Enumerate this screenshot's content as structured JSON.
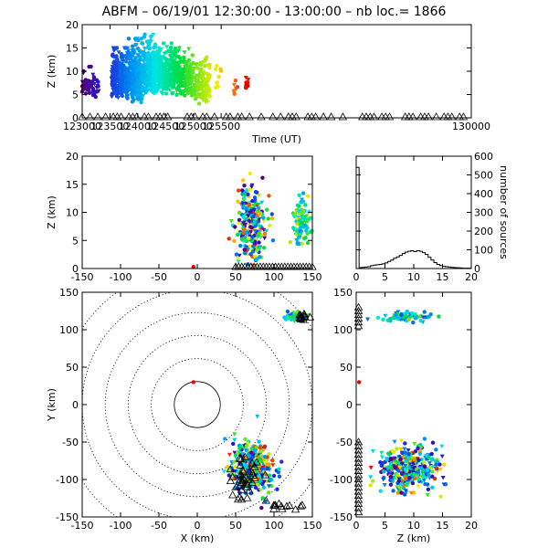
{
  "title": {
    "station": "ABFM",
    "date": "06/19/01",
    "time_range": "12:30:00 - 13:00:00",
    "label": "nb loc.=",
    "count": "1866"
  },
  "chart_data": [
    {
      "id": "time-height",
      "type": "scatter",
      "xlabel": "Time (UT)",
      "ylabel": "Z (km)",
      "xlim": [
        123000,
        130000
      ],
      "ylim": [
        0,
        20
      ],
      "xticks": [
        123000,
        123500,
        124000,
        124500,
        125000,
        125500,
        130000
      ],
      "yticks": [
        0,
        5,
        10,
        15,
        20
      ],
      "color_by": "time",
      "clusters": [
        {
          "t": [
            123000,
            123120
          ],
          "z": [
            5,
            10
          ],
          "n": 30
        },
        {
          "t": [
            123120,
            123300
          ],
          "z": [
            4,
            11
          ],
          "n": 30
        },
        {
          "t": [
            123530,
            123800
          ],
          "z": [
            4,
            15
          ],
          "n": 260
        },
        {
          "t": [
            123800,
            124100
          ],
          "z": [
            3,
            17
          ],
          "n": 320
        },
        {
          "t": [
            124100,
            124400
          ],
          "z": [
            5,
            18
          ],
          "n": 260
        },
        {
          "t": [
            124400,
            124700
          ],
          "z": [
            5,
            16
          ],
          "n": 200
        },
        {
          "t": [
            124700,
            125000
          ],
          "z": [
            4,
            15
          ],
          "n": 160
        },
        {
          "t": [
            125000,
            125300
          ],
          "z": [
            3,
            13
          ],
          "n": 130
        },
        {
          "t": [
            125400,
            125500
          ],
          "z": [
            5,
            12
          ],
          "n": 10
        },
        {
          "t": [
            125730,
            125800
          ],
          "z": [
            5,
            8
          ],
          "n": 6
        },
        {
          "t": [
            125940,
            125990
          ],
          "z": [
            6,
            9
          ],
          "n": 10
        }
      ]
    },
    {
      "id": "x-z",
      "type": "scatter",
      "xlabel": "",
      "ylabel": "Z (km)",
      "xlim": [
        -150,
        150
      ],
      "ylim": [
        0,
        20
      ],
      "xticks": [
        -150,
        -100,
        -50,
        0,
        50,
        100,
        150
      ],
      "yticks": [
        0,
        5,
        10,
        15,
        20
      ]
    },
    {
      "id": "histogram",
      "type": "line",
      "xlabel": "",
      "ylabel": "number of sources",
      "xlim": [
        0,
        20
      ],
      "ylim": [
        0,
        600
      ],
      "xticks": [
        0,
        5,
        10,
        15,
        20
      ],
      "yticks": [
        0,
        100,
        200,
        300,
        400,
        500,
        600
      ],
      "x": [
        0,
        0.5,
        1,
        1.5,
        2,
        2.5,
        3,
        3.5,
        4,
        4.5,
        5,
        5.5,
        6,
        6.5,
        7,
        7.5,
        8,
        8.5,
        9,
        9.5,
        10,
        10.5,
        11,
        11.5,
        12,
        12.5,
        13,
        13.5,
        14,
        14.5,
        15,
        15.5,
        16,
        16.5,
        17,
        17.5,
        18,
        18.5,
        19,
        19.5
      ],
      "values": [
        540,
        5,
        6,
        8,
        10,
        15,
        18,
        20,
        22,
        25,
        30,
        38,
        45,
        55,
        62,
        70,
        80,
        88,
        92,
        95,
        90,
        95,
        92,
        85,
        75,
        60,
        45,
        32,
        22,
        15,
        12,
        10,
        8,
        6,
        5,
        4,
        3,
        2,
        2,
        2
      ]
    },
    {
      "id": "x-y",
      "type": "scatter",
      "xlabel": "X (km)",
      "ylabel": "Y (km)",
      "xlim": [
        -150,
        150
      ],
      "ylim": [
        -150,
        150
      ],
      "xticks": [
        -150,
        -100,
        -50,
        0,
        50,
        100,
        150
      ],
      "yticks": [
        -150,
        -100,
        -50,
        0,
        50,
        100,
        150
      ],
      "range_rings_km": [
        30,
        60,
        90,
        120,
        150,
        180
      ]
    },
    {
      "id": "z-y",
      "type": "scatter",
      "xlabel": "Z (km)",
      "ylabel": "",
      "xlim": [
        0,
        20
      ],
      "ylim": [
        -150,
        150
      ],
      "xticks": [
        0,
        5,
        10,
        15,
        20
      ],
      "yticks": [
        -150,
        -100,
        -50,
        0,
        50,
        100,
        150
      ]
    }
  ]
}
